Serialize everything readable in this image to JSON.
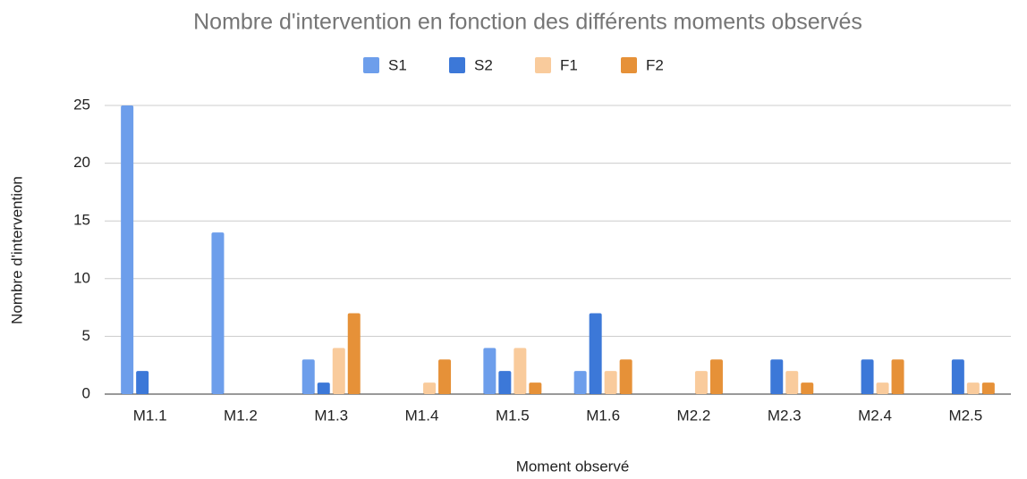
{
  "chart_data": {
    "type": "bar",
    "title": "Nombre d'intervention en fonction des différents moments observés",
    "x_label": "Moment observé",
    "y_label": "Nombre d'intervention",
    "categories": [
      "M1.1",
      "M1.2",
      "M1.3",
      "M1.4",
      "M1.5",
      "M1.6",
      "M2.2",
      "M2.3",
      "M2.4",
      "M2.5"
    ],
    "series": [
      {
        "name": "S1",
        "color": "#6d9eeb",
        "values": [
          25,
          14,
          3,
          0,
          4,
          2,
          0,
          0,
          0,
          0
        ]
      },
      {
        "name": "S2",
        "color": "#3c78d8",
        "values": [
          2,
          0,
          1,
          0,
          2,
          7,
          0,
          3,
          3,
          3
        ]
      },
      {
        "name": "F1",
        "color": "#f9cb9c",
        "values": [
          0,
          0,
          4,
          1,
          4,
          2,
          2,
          2,
          1,
          1
        ]
      },
      {
        "name": "F2",
        "color": "#e69138",
        "values": [
          0,
          0,
          7,
          3,
          1,
          3,
          3,
          1,
          3,
          1
        ]
      }
    ],
    "ylim": [
      0,
      25
    ],
    "yticks": [
      0,
      5,
      10,
      15,
      20,
      25
    ],
    "grid": true,
    "legend": "top"
  }
}
